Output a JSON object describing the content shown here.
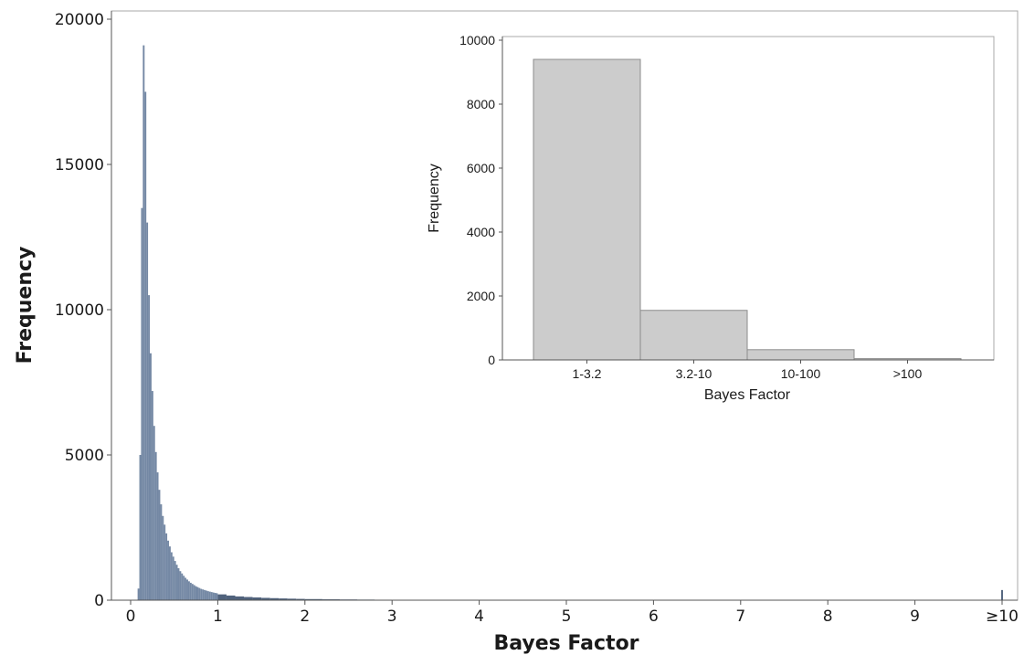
{
  "colors": {
    "main_bar": "#7488a4",
    "main_bar_edge": "#50627c",
    "inset_bar": "#cccccc"
  },
  "chart_data": [
    {
      "type": "bar",
      "xlabel": "Bayes Factor",
      "ylabel": "Frequency",
      "xlim": [
        -0.2,
        10.2
      ],
      "ylim": [
        0,
        20000
      ],
      "x_ticks": [
        "0",
        "1",
        "2",
        "3",
        "4",
        "5",
        "6",
        "7",
        "8",
        "9",
        "≥10"
      ],
      "y_ticks": [
        0,
        5000,
        10000,
        15000,
        20000
      ],
      "bin_width": 0.02,
      "x": [
        0.09,
        0.11,
        0.13,
        0.15,
        0.17,
        0.19,
        0.21,
        0.23,
        0.25,
        0.27,
        0.29,
        0.31,
        0.33,
        0.35,
        0.37,
        0.39,
        0.41,
        0.43,
        0.45,
        0.47,
        0.49,
        0.51,
        0.53,
        0.55,
        0.57,
        0.59,
        0.61,
        0.63,
        0.65,
        0.67,
        0.69,
        0.71,
        0.73,
        0.75,
        0.77,
        0.79,
        0.81,
        0.83,
        0.85,
        0.87,
        0.89,
        0.91,
        0.93,
        0.95,
        0.97,
        0.99,
        1.05,
        1.15,
        1.25,
        1.35,
        1.45,
        1.55,
        1.65,
        1.75,
        1.85,
        1.95,
        2.1,
        2.3,
        2.5,
        2.7,
        2.9,
        3.25,
        3.75,
        4.25,
        4.75,
        5.25,
        5.75,
        6.25,
        6.75,
        7.25,
        7.75,
        8.25,
        8.75,
        9.25,
        9.75,
        10.0
      ],
      "values": [
        400,
        5000,
        13500,
        19100,
        17500,
        13000,
        10500,
        8500,
        7200,
        6000,
        5100,
        4400,
        3800,
        3300,
        2900,
        2600,
        2300,
        2050,
        1850,
        1650,
        1500,
        1350,
        1220,
        1100,
        1000,
        920,
        840,
        770,
        710,
        650,
        600,
        560,
        520,
        480,
        450,
        420,
        390,
        370,
        350,
        330,
        310,
        295,
        280,
        265,
        250,
        240,
        200,
        160,
        130,
        110,
        95,
        80,
        70,
        60,
        52,
        45,
        38,
        30,
        25,
        20,
        16,
        12,
        9,
        7,
        5,
        4,
        3,
        3,
        2,
        2,
        2,
        1,
        1,
        1,
        1,
        350
      ]
    },
    {
      "type": "bar",
      "xlabel": "Bayes Factor",
      "ylabel": "Frequency",
      "categories": [
        "1-3.2",
        "3.2-10",
        "10-100",
        ">100"
      ],
      "values": [
        9400,
        1550,
        320,
        40
      ],
      "ylim": [
        0,
        10000
      ],
      "y_ticks": [
        0,
        2000,
        4000,
        6000,
        8000,
        10000
      ]
    }
  ]
}
